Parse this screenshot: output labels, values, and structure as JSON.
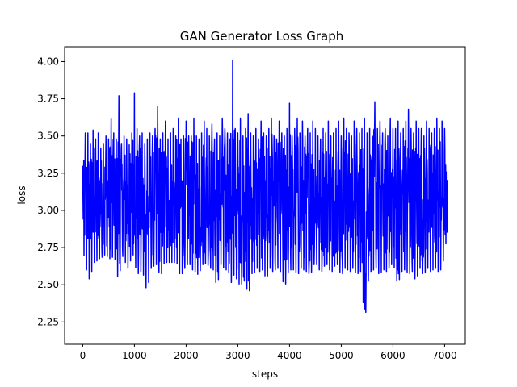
{
  "chart_data": {
    "type": "line",
    "title": "GAN Generator Loss Graph",
    "xlabel": "steps",
    "ylabel": "loss",
    "xlim": [
      -350,
      7400
    ],
    "ylim": [
      2.1,
      4.1
    ],
    "xticks": [
      0,
      1000,
      2000,
      3000,
      4000,
      5000,
      6000,
      7000
    ],
    "xtick_labels": [
      "0",
      "1000",
      "2000",
      "3000",
      "4000",
      "5000",
      "6000",
      "7000"
    ],
    "yticks": [
      2.25,
      2.5,
      2.75,
      3.0,
      3.25,
      3.5,
      3.75,
      4.0
    ],
    "ytick_labels": [
      "2.25",
      "2.50",
      "2.75",
      "3.00",
      "3.25",
      "3.50",
      "3.75",
      "4.00"
    ],
    "grid": false,
    "legend": "none",
    "series": [
      {
        "color": "#0000ff",
        "x": [
          0,
          50,
          100,
          150,
          200,
          250,
          300,
          350,
          400,
          450,
          500,
          550,
          600,
          650,
          700,
          750,
          800,
          850,
          900,
          950,
          1000,
          1050,
          1100,
          1150,
          1200,
          1250,
          1300,
          1350,
          1400,
          1450,
          1500,
          1550,
          1600,
          1650,
          1700,
          1750,
          1800,
          1850,
          1900,
          1950,
          2000,
          2050,
          2100,
          2150,
          2200,
          2250,
          2300,
          2350,
          2400,
          2450,
          2500,
          2550,
          2600,
          2650,
          2700,
          2750,
          2800,
          2850,
          2900,
          2950,
          3000,
          3050,
          3100,
          3150,
          3200,
          3250,
          3300,
          3350,
          3400,
          3450,
          3500,
          3550,
          3600,
          3650,
          3700,
          3750,
          3800,
          3850,
          3900,
          3950,
          4000,
          4050,
          4100,
          4150,
          4200,
          4250,
          4300,
          4350,
          4400,
          4450,
          4500,
          4550,
          4600,
          4650,
          4700,
          4750,
          4800,
          4850,
          4900,
          4950,
          5000,
          5050,
          5100,
          5150,
          5200,
          5250,
          5300,
          5350,
          5400,
          5450,
          5500,
          5550,
          5600,
          5650,
          5700,
          5750,
          5800,
          5850,
          5900,
          5950,
          6000,
          6050,
          6100,
          6150,
          6200,
          6250,
          6300,
          6350,
          6400,
          6450,
          6500,
          6550,
          6600,
          6650,
          6700,
          6750,
          6800,
          6850,
          6900,
          6950,
          7000,
          7050
        ],
        "high": [
          3.3,
          3.52,
          3.52,
          3.45,
          3.54,
          3.48,
          3.52,
          3.42,
          3.45,
          3.5,
          3.48,
          3.62,
          3.52,
          3.48,
          3.77,
          3.45,
          3.5,
          3.48,
          3.44,
          3.52,
          3.79,
          3.55,
          3.5,
          3.52,
          3.45,
          3.48,
          3.52,
          3.5,
          3.55,
          3.7,
          3.48,
          3.52,
          3.6,
          3.48,
          3.52,
          3.55,
          3.5,
          3.62,
          3.48,
          3.5,
          3.6,
          3.5,
          3.5,
          3.62,
          3.5,
          3.48,
          3.52,
          3.6,
          3.55,
          3.5,
          3.58,
          3.48,
          3.52,
          3.5,
          3.62,
          3.55,
          3.52,
          3.48,
          4.01,
          3.55,
          3.52,
          3.62,
          3.5,
          3.55,
          3.65,
          3.52,
          3.5,
          3.55,
          3.48,
          3.6,
          3.52,
          3.5,
          3.55,
          3.62,
          3.5,
          3.48,
          3.6,
          3.52,
          3.5,
          3.55,
          3.72,
          3.5,
          3.55,
          3.62,
          3.52,
          3.6,
          3.5,
          3.55,
          3.52,
          3.6,
          3.55,
          3.5,
          3.48,
          3.55,
          3.52,
          3.6,
          3.5,
          3.52,
          3.55,
          3.6,
          3.5,
          3.62,
          3.55,
          3.52,
          3.5,
          3.6,
          3.55,
          3.52,
          3.55,
          3.62,
          3.52,
          3.55,
          3.5,
          3.73,
          3.55,
          3.6,
          3.52,
          3.55,
          3.5,
          3.62,
          3.55,
          3.55,
          3.6,
          3.52,
          3.55,
          3.6,
          3.68,
          3.55,
          3.52,
          3.6,
          3.55,
          3.55,
          3.5,
          3.6,
          3.55,
          3.52,
          3.55,
          3.62,
          3.55,
          3.6,
          3.55,
          3.2
        ],
        "low": [
          2.77,
          2.62,
          2.58,
          2.5,
          2.68,
          2.62,
          2.7,
          2.65,
          2.72,
          2.68,
          2.7,
          2.65,
          2.72,
          2.62,
          2.49,
          2.7,
          2.68,
          2.62,
          2.6,
          2.72,
          2.68,
          2.55,
          2.6,
          2.58,
          2.55,
          2.41,
          2.62,
          2.6,
          2.65,
          2.62,
          2.55,
          2.6,
          2.68,
          2.62,
          2.68,
          2.62,
          2.68,
          2.6,
          2.55,
          2.6,
          2.62,
          2.65,
          2.62,
          2.58,
          2.6,
          2.54,
          2.65,
          2.62,
          2.66,
          2.6,
          2.62,
          2.58,
          2.45,
          2.62,
          2.65,
          2.58,
          2.62,
          2.55,
          2.48,
          2.65,
          2.43,
          2.58,
          2.43,
          2.62,
          2.32,
          2.6,
          2.55,
          2.62,
          2.6,
          2.58,
          2.62,
          2.5,
          2.62,
          2.6,
          2.58,
          2.62,
          2.6,
          2.58,
          2.46,
          2.55,
          2.62,
          2.58,
          2.62,
          2.55,
          2.6,
          2.62,
          2.58,
          2.6,
          2.55,
          2.62,
          2.65,
          2.62,
          2.58,
          2.6,
          2.65,
          2.62,
          2.58,
          2.6,
          2.65,
          2.62,
          2.55,
          2.6,
          2.62,
          2.58,
          2.6,
          2.62,
          2.55,
          2.6,
          2.58,
          2.18,
          2.45,
          2.6,
          2.58,
          2.62,
          2.6,
          2.55,
          2.62,
          2.58,
          2.6,
          2.62,
          2.65,
          2.58,
          2.47,
          2.6,
          2.58,
          2.62,
          2.55,
          2.6,
          2.58,
          2.5,
          2.62,
          2.6,
          2.55,
          2.62,
          2.6,
          2.58,
          2.62,
          2.6,
          2.58,
          2.62,
          2.7,
          2.85
        ]
      }
    ]
  }
}
